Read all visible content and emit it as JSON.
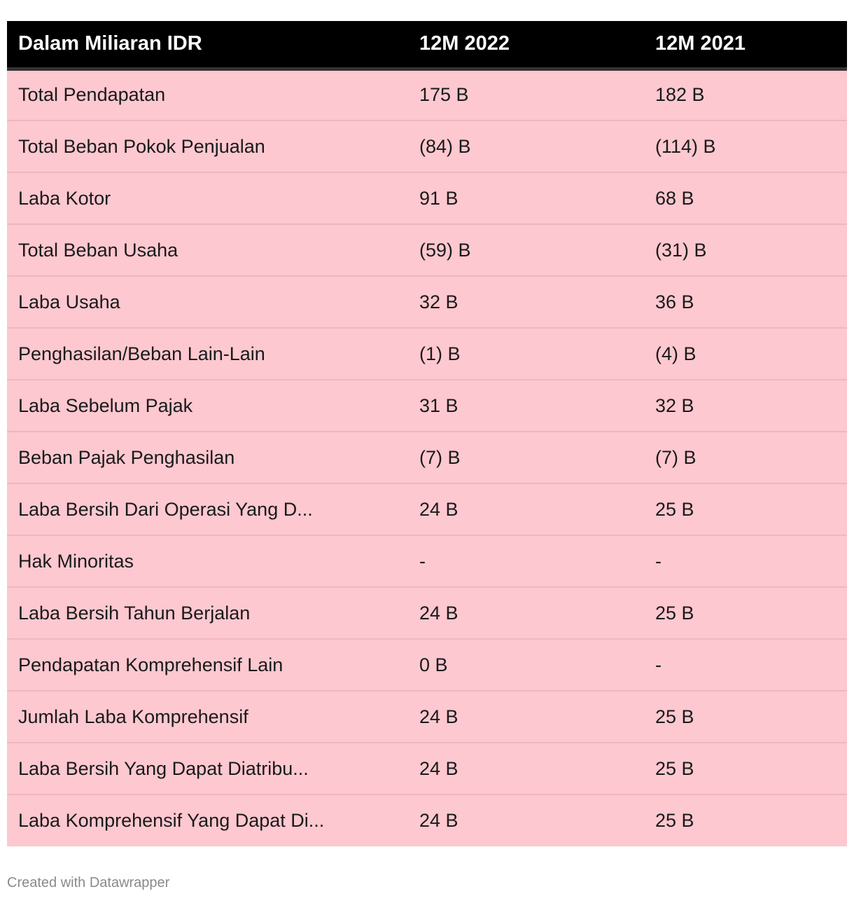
{
  "chart_data": {
    "type": "table",
    "columns": [
      "Dalam Miliaran IDR",
      "12M 2022",
      "12M 2021"
    ],
    "rows": [
      [
        "Total Pendapatan",
        "175 B",
        "182 B"
      ],
      [
        "Total Beban Pokok Penjualan",
        "(84) B",
        "(114) B"
      ],
      [
        "Laba Kotor",
        "91 B",
        "68 B"
      ],
      [
        "Total Beban Usaha",
        "(59) B",
        "(31) B"
      ],
      [
        "Laba Usaha",
        "32 B",
        "36 B"
      ],
      [
        "Penghasilan/Beban Lain-Lain",
        "(1) B",
        "(4) B"
      ],
      [
        "Laba Sebelum Pajak",
        "31 B",
        "32 B"
      ],
      [
        "Beban Pajak Penghasilan",
        "(7) B",
        "(7) B"
      ],
      [
        "Laba Bersih Dari Operasi Yang D...",
        "24 B",
        "25 B"
      ],
      [
        "Hak Minoritas",
        "-",
        "-"
      ],
      [
        "Laba Bersih Tahun Berjalan",
        "24 B",
        "25 B"
      ],
      [
        "Pendapatan Komprehensif Lain",
        "0 B",
        "-"
      ],
      [
        "Jumlah Laba Komprehensif",
        "24 B",
        "25 B"
      ],
      [
        "Laba Bersih Yang Dapat Diatribu...",
        "24 B",
        "25 B"
      ],
      [
        "Laba Komprehensif Yang Dapat Di...",
        "24 B",
        "25 B"
      ]
    ],
    "colors": {
      "header_background": "#000000",
      "header_text": "#ffffff",
      "row_background": "#fdc8d0"
    }
  },
  "footer": {
    "credit": "Created with Datawrapper"
  }
}
